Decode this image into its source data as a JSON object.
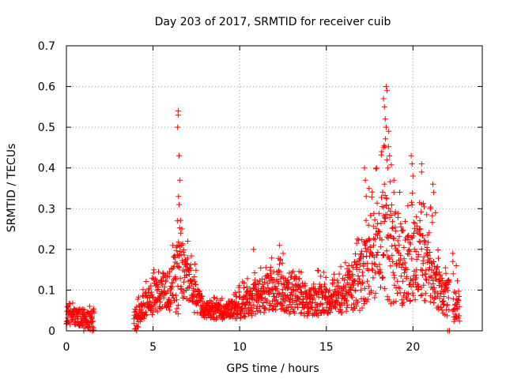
{
  "chart_data": {
    "type": "scatter",
    "title": "Day 203 of 2017, SRMTID for receiver cuib",
    "xlabel": "GPS time / hours",
    "ylabel": "SRMTID / TECUs",
    "xlim": [
      0,
      24
    ],
    "ylim": [
      0,
      0.7
    ],
    "x_ticks": [
      "0",
      "5",
      "10",
      "15",
      "20"
    ],
    "x_tick_values": [
      0,
      5,
      10,
      15,
      20
    ],
    "y_ticks": [
      "0",
      "0.1",
      "0.2",
      "0.3",
      "0.4",
      "0.5",
      "0.6",
      "0.7"
    ],
    "y_tick_values": [
      0,
      0.1,
      0.2,
      0.3,
      0.4,
      0.5,
      0.6,
      0.7
    ],
    "grid": true,
    "marker": "+",
    "series": [
      {
        "name": "SRMTID",
        "color": "#ff0000",
        "profile": [
          {
            "x": 0.0,
            "level": 0.03,
            "spread": 0.02
          },
          {
            "x": 0.5,
            "level": 0.035,
            "spread": 0.02
          },
          {
            "x": 1.0,
            "level": 0.03,
            "spread": 0.025
          },
          {
            "x": 1.5,
            "level": 0.02,
            "spread": 0.02
          },
          {
            "x": 4.0,
            "level": 0.03,
            "spread": 0.03
          },
          {
            "x": 4.5,
            "level": 0.06,
            "spread": 0.035
          },
          {
            "x": 5.0,
            "level": 0.08,
            "spread": 0.04
          },
          {
            "x": 5.5,
            "level": 0.09,
            "spread": 0.04
          },
          {
            "x": 6.0,
            "level": 0.1,
            "spread": 0.05
          },
          {
            "x": 6.5,
            "level": 0.14,
            "spread": 0.1
          },
          {
            "x": 7.0,
            "level": 0.12,
            "spread": 0.07
          },
          {
            "x": 7.5,
            "level": 0.08,
            "spread": 0.04
          },
          {
            "x": 8.0,
            "level": 0.05,
            "spread": 0.02
          },
          {
            "x": 9.0,
            "level": 0.045,
            "spread": 0.02
          },
          {
            "x": 10.0,
            "level": 0.06,
            "spread": 0.03
          },
          {
            "x": 11.0,
            "level": 0.08,
            "spread": 0.04
          },
          {
            "x": 12.0,
            "level": 0.1,
            "spread": 0.05
          },
          {
            "x": 13.0,
            "level": 0.08,
            "spread": 0.04
          },
          {
            "x": 14.0,
            "level": 0.075,
            "spread": 0.04
          },
          {
            "x": 15.0,
            "level": 0.08,
            "spread": 0.04
          },
          {
            "x": 16.0,
            "level": 0.09,
            "spread": 0.045
          },
          {
            "x": 17.0,
            "level": 0.12,
            "spread": 0.07
          },
          {
            "x": 17.5,
            "level": 0.18,
            "spread": 0.1
          },
          {
            "x": 18.0,
            "level": 0.2,
            "spread": 0.12
          },
          {
            "x": 18.5,
            "level": 0.22,
            "spread": 0.15
          },
          {
            "x": 19.0,
            "level": 0.18,
            "spread": 0.12
          },
          {
            "x": 19.5,
            "level": 0.16,
            "spread": 0.1
          },
          {
            "x": 20.0,
            "level": 0.17,
            "spread": 0.1
          },
          {
            "x": 20.5,
            "level": 0.16,
            "spread": 0.09
          },
          {
            "x": 21.0,
            "level": 0.16,
            "spread": 0.09
          },
          {
            "x": 21.5,
            "level": 0.1,
            "spread": 0.05
          },
          {
            "x": 22.0,
            "level": 0.08,
            "spread": 0.05
          },
          {
            "x": 22.5,
            "level": 0.06,
            "spread": 0.04
          },
          {
            "x": 22.7,
            "level": 0.05,
            "spread": 0.03
          }
        ],
        "gaps": [
          [
            1.6,
            3.9
          ],
          [
            22.1,
            22.3
          ]
        ],
        "peaks": [
          {
            "x": 6.45,
            "y": 0.54
          },
          {
            "x": 6.45,
            "y": 0.53
          },
          {
            "x": 6.42,
            "y": 0.5
          },
          {
            "x": 6.5,
            "y": 0.43
          },
          {
            "x": 6.55,
            "y": 0.37
          },
          {
            "x": 6.47,
            "y": 0.33
          },
          {
            "x": 6.5,
            "y": 0.31
          },
          {
            "x": 6.4,
            "y": 0.27
          },
          {
            "x": 6.6,
            "y": 0.24
          },
          {
            "x": 7.0,
            "y": 0.22
          },
          {
            "x": 18.45,
            "y": 0.6
          },
          {
            "x": 18.5,
            "y": 0.59
          },
          {
            "x": 18.3,
            "y": 0.57
          },
          {
            "x": 18.35,
            "y": 0.55
          },
          {
            "x": 18.4,
            "y": 0.52
          },
          {
            "x": 18.45,
            "y": 0.5
          },
          {
            "x": 18.6,
            "y": 0.49
          },
          {
            "x": 18.3,
            "y": 0.45
          },
          {
            "x": 18.5,
            "y": 0.42
          },
          {
            "x": 18.55,
            "y": 0.4
          },
          {
            "x": 18.35,
            "y": 0.36
          },
          {
            "x": 17.2,
            "y": 0.4
          },
          {
            "x": 17.25,
            "y": 0.37
          },
          {
            "x": 17.3,
            "y": 0.33
          },
          {
            "x": 18.9,
            "y": 0.37
          },
          {
            "x": 18.9,
            "y": 0.34
          },
          {
            "x": 19.9,
            "y": 0.43
          },
          {
            "x": 19.95,
            "y": 0.41
          },
          {
            "x": 20.0,
            "y": 0.38
          },
          {
            "x": 20.5,
            "y": 0.41
          },
          {
            "x": 20.5,
            "y": 0.39
          },
          {
            "x": 21.15,
            "y": 0.36
          },
          {
            "x": 21.2,
            "y": 0.34
          },
          {
            "x": 21.0,
            "y": 0.3
          },
          {
            "x": 21.3,
            "y": 0.29
          },
          {
            "x": 20.2,
            "y": 0.28
          },
          {
            "x": 12.3,
            "y": 0.21
          },
          {
            "x": 12.5,
            "y": 0.19
          },
          {
            "x": 10.8,
            "y": 0.2
          },
          {
            "x": 16.3,
            "y": 0.16
          },
          {
            "x": 22.3,
            "y": 0.19
          },
          {
            "x": 22.3,
            "y": 0.17
          },
          {
            "x": 22.5,
            "y": 0.16
          },
          {
            "x": 4.05,
            "y": 0.0
          },
          {
            "x": 1.0,
            "y": 0.0
          },
          {
            "x": 22.0,
            "y": 0.0
          },
          {
            "x": 22.1,
            "y": 0.0
          },
          {
            "x": 1.5,
            "y": 0.0
          }
        ]
      }
    ]
  }
}
